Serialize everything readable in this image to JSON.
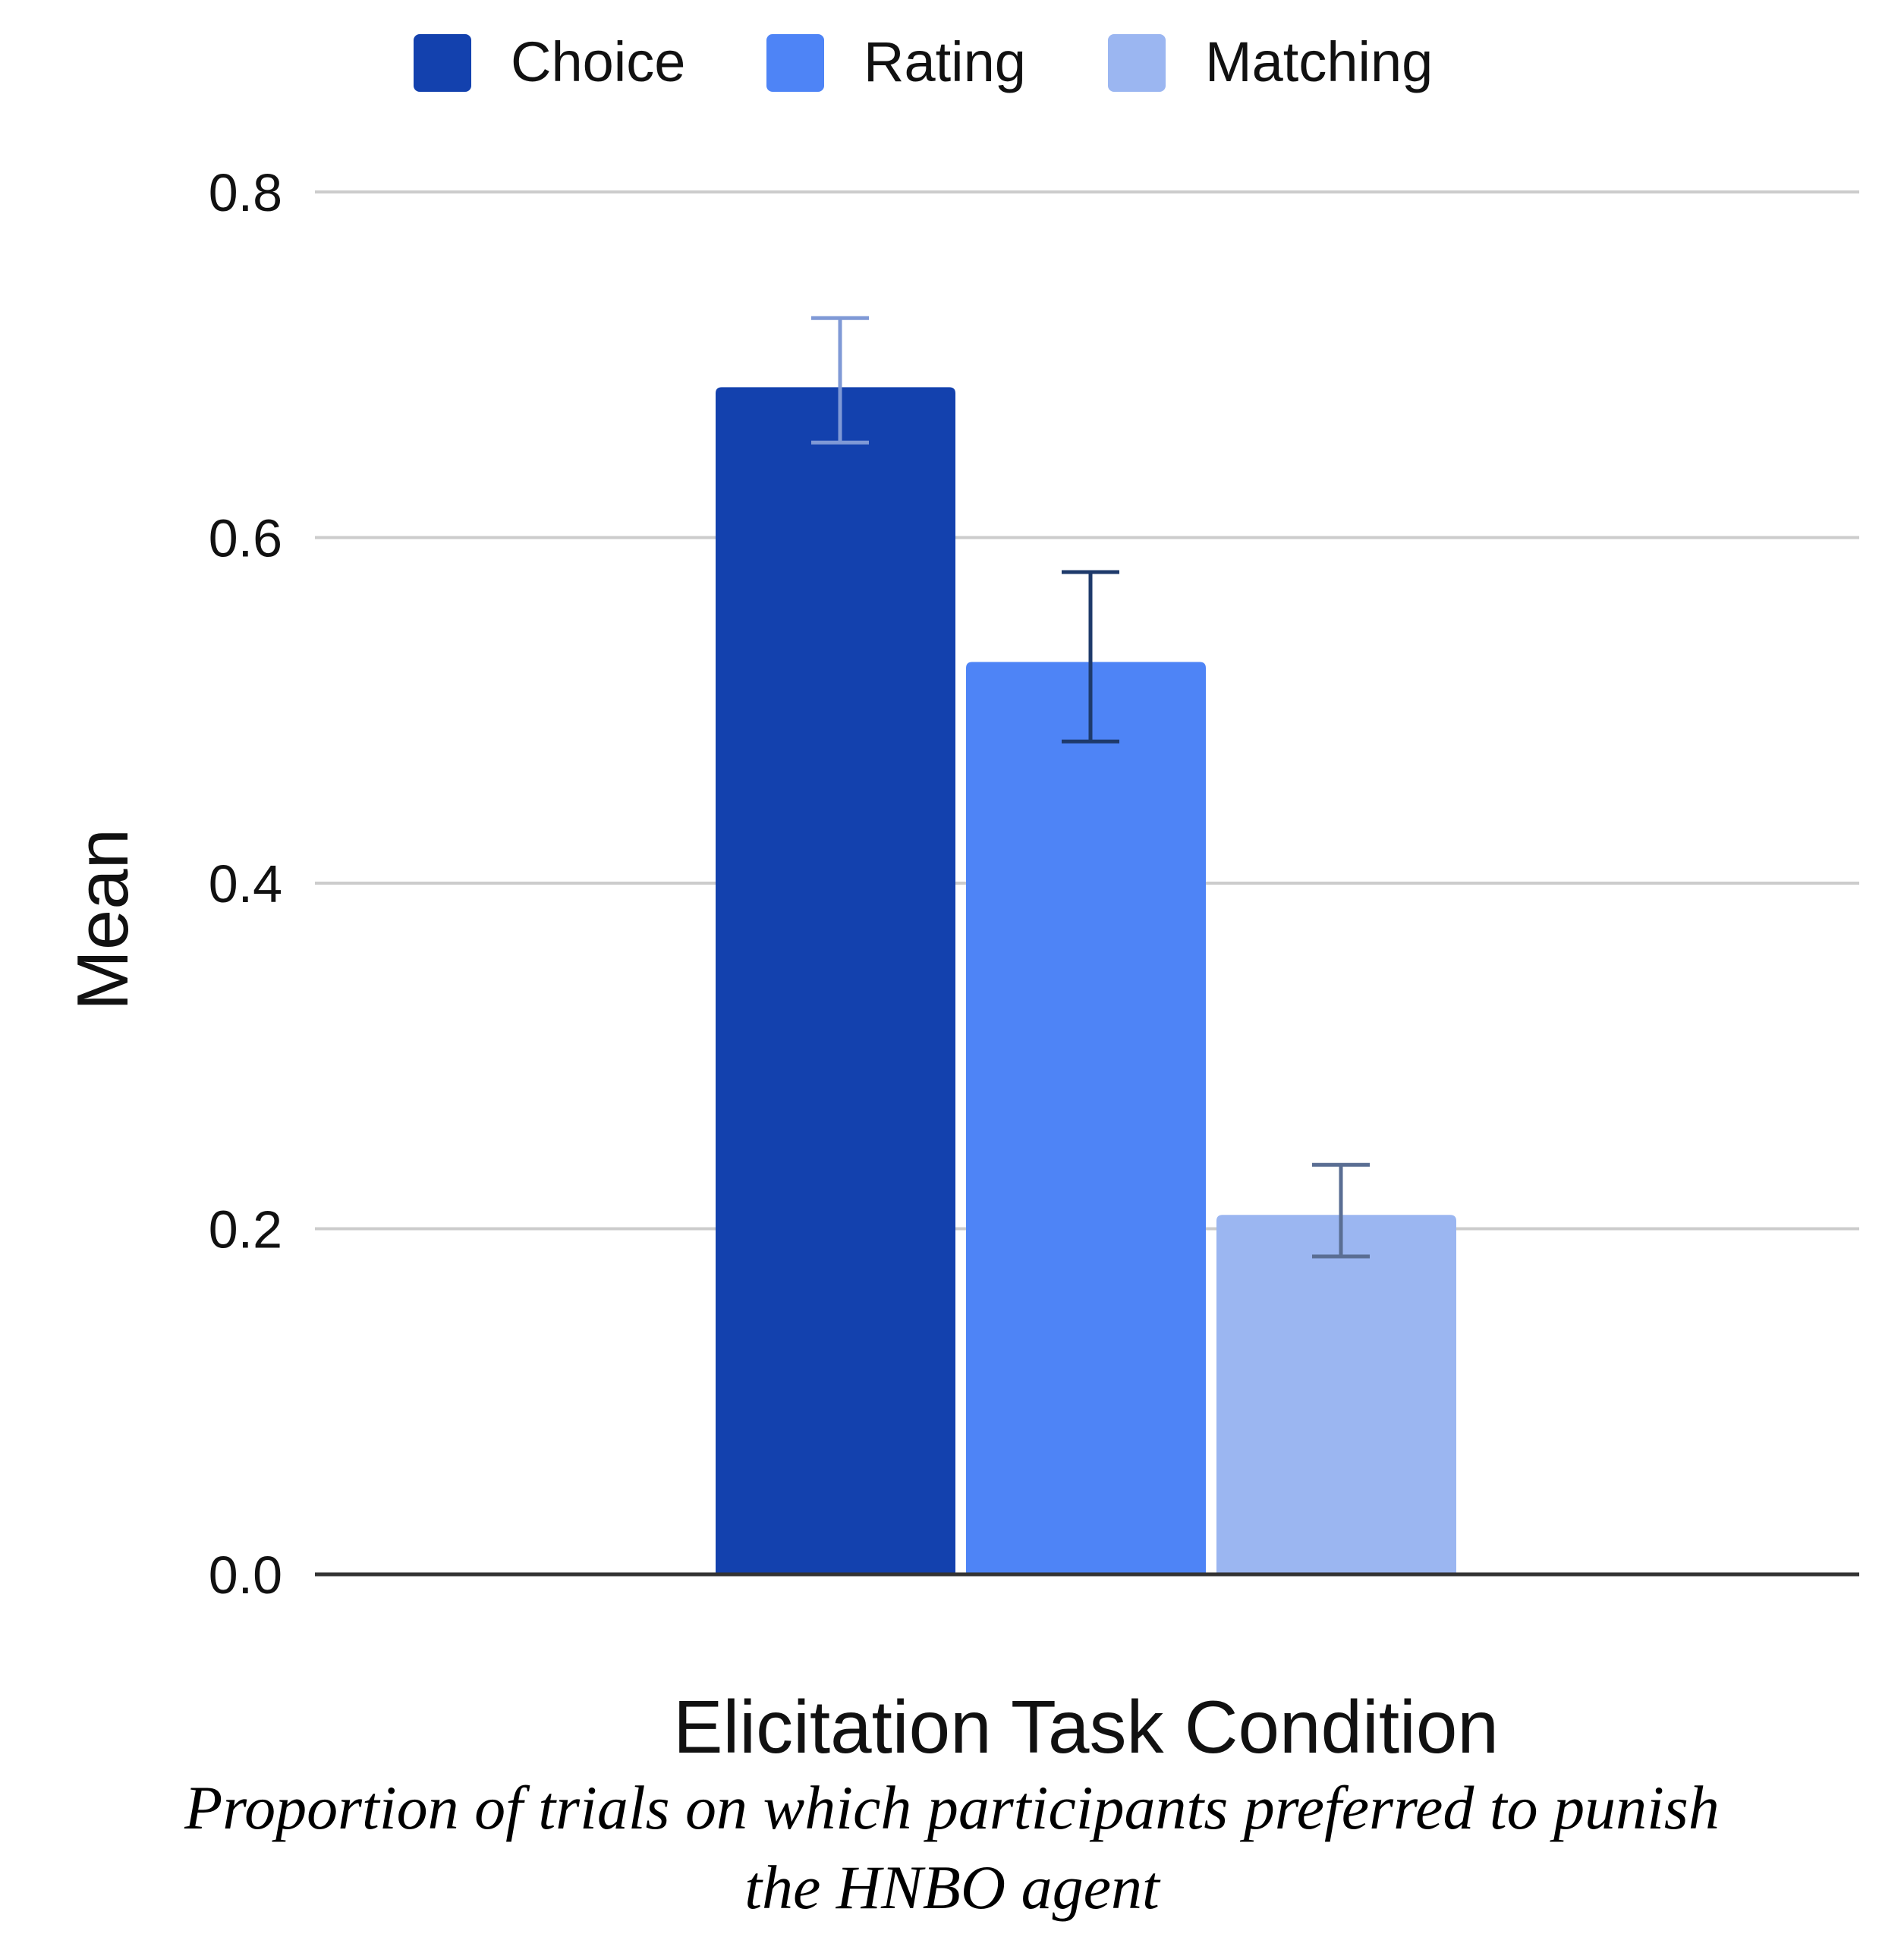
{
  "chart_data": {
    "type": "bar",
    "title": "",
    "xlabel": "Elicitation Task Condition",
    "ylabel": "Mean",
    "ylim": [
      0,
      0.8
    ],
    "yticks": [
      "0.0",
      "0.2",
      "0.4",
      "0.6",
      "0.8"
    ],
    "grid": true,
    "legend_position": "top",
    "categories": [
      ""
    ],
    "series": [
      {
        "name": "Choice",
        "values": [
          0.687
        ],
        "error_low": [
          0.655
        ],
        "error_high": [
          0.727
        ],
        "color": "#1341ae"
      },
      {
        "name": "Rating",
        "values": [
          0.528
        ],
        "error_low": [
          0.482
        ],
        "error_high": [
          0.58
        ],
        "color": "#4e84f6"
      },
      {
        "name": "Matching",
        "values": [
          0.208
        ],
        "error_low": [
          0.184
        ],
        "error_high": [
          0.237
        ],
        "color": "#9bb6f1"
      }
    ],
    "errorbar_colors": [
      "#7f99d6",
      "#1e3a6b",
      "#5a6e93"
    ]
  },
  "caption": {
    "line1": "Proportion of trials on which participants preferred to punish",
    "line2": "the HNBO agent"
  }
}
